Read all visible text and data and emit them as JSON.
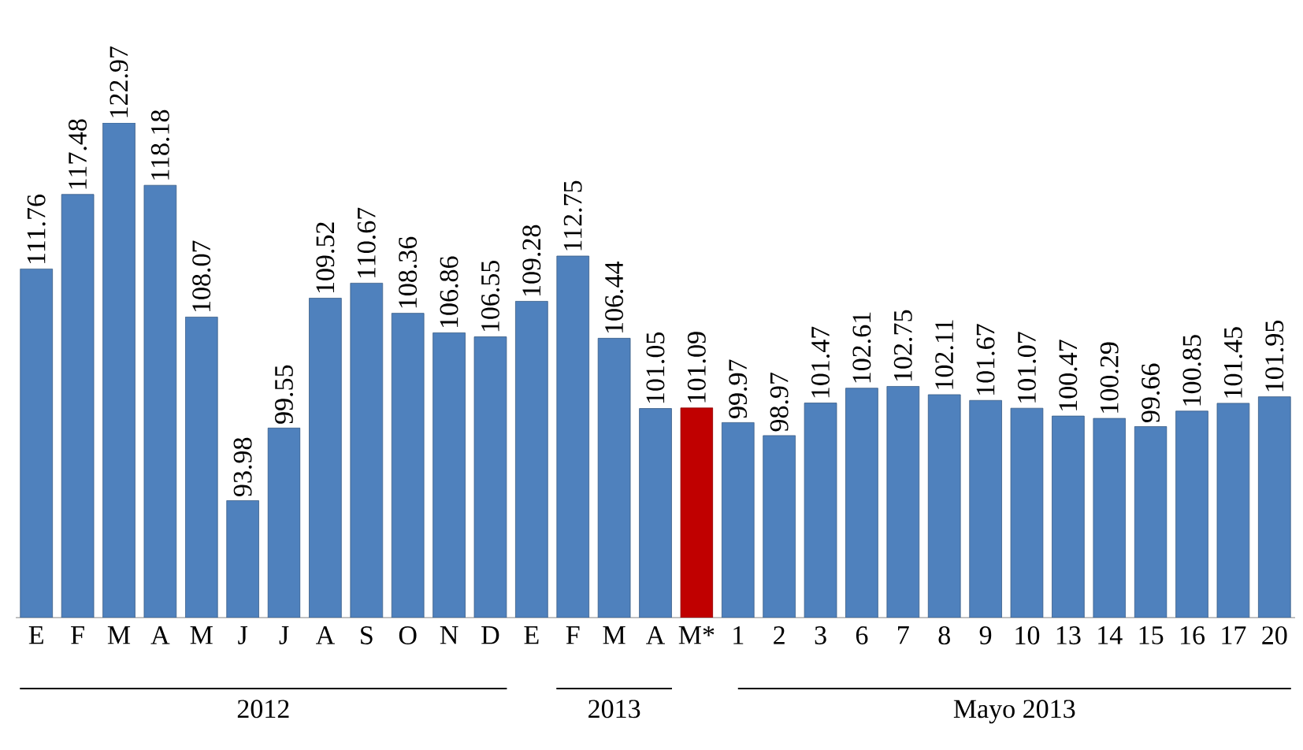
{
  "chart_data": {
    "type": "bar",
    "categories": [
      "E",
      "F",
      "M",
      "A",
      "M",
      "J",
      "J",
      "A",
      "S",
      "O",
      "N",
      "D",
      "E",
      "F",
      "M",
      "A",
      "M*",
      "1",
      "2",
      "3",
      "6",
      "7",
      "8",
      "9",
      "10",
      "13",
      "14",
      "15",
      "16",
      "17",
      "20"
    ],
    "values": [
      111.76,
      117.48,
      122.97,
      118.18,
      108.07,
      93.98,
      99.55,
      109.52,
      110.67,
      108.36,
      106.86,
      106.55,
      109.28,
      112.75,
      106.44,
      101.05,
      101.09,
      99.97,
      98.97,
      101.47,
      102.61,
      102.75,
      102.11,
      101.67,
      101.07,
      100.47,
      100.29,
      99.66,
      100.85,
      101.45,
      101.95
    ],
    "colors": [
      "#4f81bd",
      "#4f81bd",
      "#4f81bd",
      "#4f81bd",
      "#4f81bd",
      "#4f81bd",
      "#4f81bd",
      "#4f81bd",
      "#4f81bd",
      "#4f81bd",
      "#4f81bd",
      "#4f81bd",
      "#4f81bd",
      "#4f81bd",
      "#4f81bd",
      "#4f81bd",
      "#c00000",
      "#4f81bd",
      "#4f81bd",
      "#4f81bd",
      "#4f81bd",
      "#4f81bd",
      "#4f81bd",
      "#4f81bd",
      "#4f81bd",
      "#4f81bd",
      "#4f81bd",
      "#4f81bd",
      "#4f81bd",
      "#4f81bd",
      "#4f81bd"
    ],
    "ylim": [
      85,
      122.97
    ],
    "data_labels": true,
    "tick_labels": "x",
    "annotations": [
      "2012",
      "2013",
      "Mayo 2013"
    ]
  }
}
